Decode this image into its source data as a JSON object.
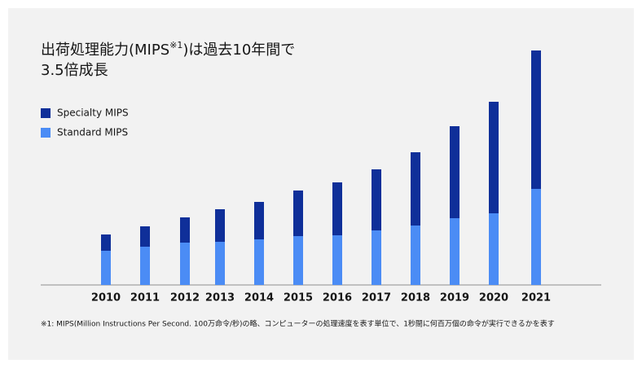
{
  "chart_data": {
    "type": "stacked-bar",
    "title": [
      "出荷処理能力(MIPS",
      "※1",
      ")は過去10年間で",
      "3.5倍成長"
    ],
    "categories": [
      "2010",
      "2011",
      "2012",
      "2013",
      "2014",
      "2015",
      "2016",
      "2017",
      "2018",
      "2019",
      "2020",
      "2021"
    ],
    "series": [
      {
        "name": "Standard MIPS",
        "color": "#4b8cf5",
        "values": [
          42,
          47,
          52,
          53,
          56,
          60,
          61,
          67,
          73,
          82,
          88,
          118
        ]
      },
      {
        "name": "Specialty MIPS",
        "color": "#0f2f99",
        "values": [
          20,
          25,
          31,
          40,
          46,
          56,
          65,
          75,
          90,
          113,
          137,
          170
        ]
      }
    ],
    "ylim": [
      0,
      300
    ],
    "footnote": "※1: MIPS(Million Instructions Per Second. 100万命令/秒)の略、コンピューターの処理速度を表す単位で、1秒間に何百万個の命令が実行できるかを表す"
  }
}
